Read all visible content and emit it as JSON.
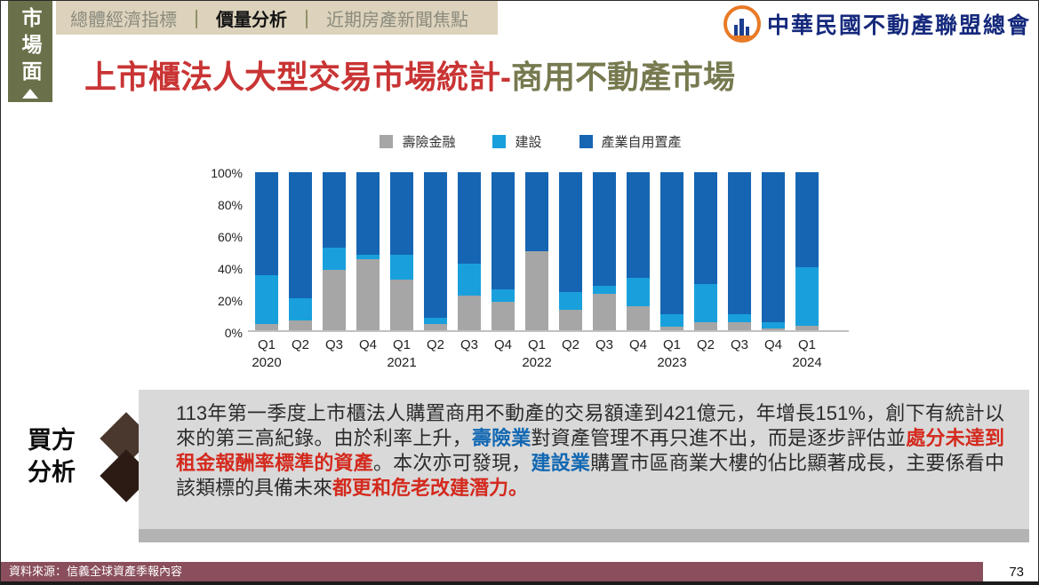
{
  "header": {
    "side_tab": "市場面",
    "nav": {
      "separator": "｜",
      "items": [
        {
          "label": "總體經濟指標",
          "active": false
        },
        {
          "label": "價量分析",
          "active": true
        },
        {
          "label": "近期房產新聞焦點",
          "active": false
        }
      ]
    },
    "logo_text": "中華民國不動產聯盟總會"
  },
  "title": {
    "main": "上市櫃法人大型交易市場統計-",
    "suffix": "商用不動產市場"
  },
  "chart_data": {
    "type": "bar",
    "stacked": true,
    "categories": [
      "Q1",
      "Q2",
      "Q3",
      "Q4",
      "Q1",
      "Q2",
      "Q3",
      "Q4",
      "Q1",
      "Q2",
      "Q3",
      "Q4",
      "Q1",
      "Q2",
      "Q3",
      "Q4",
      "Q1"
    ],
    "year_row": [
      "2020",
      "",
      "",
      "",
      "2021",
      "",
      "",
      "",
      "2022",
      "",
      "",
      "",
      "2023",
      "",
      "",
      "",
      "2024"
    ],
    "series": [
      {
        "name": "壽險金融",
        "color": "#a6a6a6",
        "values": [
          4,
          6,
          38,
          45,
          32,
          4,
          22,
          18,
          50,
          13,
          23,
          15,
          2,
          5,
          5,
          1,
          3
        ]
      },
      {
        "name": "建設",
        "color": "#19a0dc",
        "values": [
          31,
          14,
          14,
          3,
          16,
          4,
          20,
          8,
          0,
          11,
          5,
          18,
          8,
          24,
          5,
          4,
          37
        ]
      },
      {
        "name": "產業自用置產",
        "color": "#1565b3",
        "values": [
          65,
          80,
          48,
          52,
          52,
          92,
          58,
          74,
          50,
          76,
          72,
          67,
          90,
          71,
          90,
          95,
          60
        ]
      }
    ],
    "y_ticks": [
      "100%",
      "80%",
      "60%",
      "40%",
      "20%",
      "0%"
    ],
    "ylim": [
      0,
      100
    ],
    "unit": "%",
    "legend_position": "top",
    "grid": false
  },
  "analysis": {
    "label_lines": [
      "買方",
      "分析"
    ],
    "segments": [
      {
        "text": "113年第一季度上市櫃法人購置商用不動產的交易額達到421億元，年增長151%，創下有統計以來的第三高紀錄。由於利率上升，",
        "style": "normal"
      },
      {
        "text": "壽險業",
        "style": "blue"
      },
      {
        "text": "對資產管理不再只進不出，而是逐步評估並",
        "style": "normal"
      },
      {
        "text": "處分未達到租金報酬率標準的資產",
        "style": "red"
      },
      {
        "text": "。本次亦可發現，",
        "style": "normal"
      },
      {
        "text": "建設業",
        "style": "blue"
      },
      {
        "text": "購置市區商業大樓的佔比顯著成長，主要係看中該類標的具備未來",
        "style": "normal"
      },
      {
        "text": "都更和危老改建潛力。",
        "style": "red"
      }
    ]
  },
  "footer": {
    "source": "資料來源：信義全球資產季報內容",
    "page": "73"
  },
  "colors": {
    "tab_bg": "#6a7049",
    "nav_bg": "#ddd3bc",
    "title_red": "#c93434",
    "title_olive": "#77794f",
    "series_gray": "#a6a6a6",
    "series_cyan": "#19a0dc",
    "series_blue": "#1565b3",
    "box_bg": "#d9d9d9",
    "box_strip": "#b3b3b3",
    "text_blue": "#1268b3",
    "text_red": "#d42a1e",
    "arrow_dark": "#4a372e",
    "arrow_darker": "#2c1b15",
    "footer_bg": "#8a4e5c",
    "logo_blue": "#15297c",
    "logo_orange": "#e87a26"
  }
}
